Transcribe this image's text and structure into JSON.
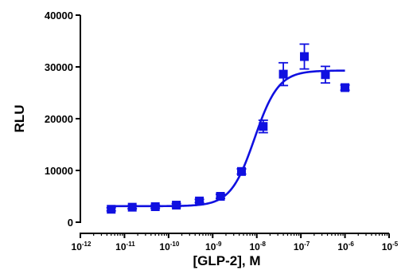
{
  "chart_data": {
    "type": "scatter",
    "title": "",
    "xlabel": "[GLP-2], M",
    "ylabel": "RLU",
    "x_scale": "log",
    "xlim": [
      1e-12,
      1e-05
    ],
    "ylim": [
      0,
      40000
    ],
    "grid": false,
    "legend": "none",
    "x_ticks": [
      1e-12,
      1e-11,
      1e-10,
      1e-09,
      1e-08,
      1e-07,
      1e-06,
      1e-05
    ],
    "x_tick_labels": [
      {
        "base": "10",
        "exp": "-12"
      },
      {
        "base": "10",
        "exp": "-11"
      },
      {
        "base": "10",
        "exp": "-10"
      },
      {
        "base": "10",
        "exp": "-9"
      },
      {
        "base": "10",
        "exp": "-8"
      },
      {
        "base": "10",
        "exp": "-7"
      },
      {
        "base": "10",
        "exp": "-6"
      },
      {
        "base": "10",
        "exp": "-5"
      }
    ],
    "y_ticks": [
      0,
      10000,
      20000,
      30000,
      40000
    ],
    "y_tick_labels": [
      "0",
      "10000",
      "20000",
      "30000",
      "40000"
    ],
    "color": "#1010e0",
    "series": [
      {
        "marker": "square",
        "points": [
          {
            "x": 5e-12,
            "y": 2500,
            "err": 300
          },
          {
            "x": 1.5e-11,
            "y": 2900,
            "err": 300
          },
          {
            "x": 5e-11,
            "y": 3000,
            "err": 300
          },
          {
            "x": 1.5e-10,
            "y": 3300,
            "err": 300
          },
          {
            "x": 5e-10,
            "y": 4100,
            "err": 300
          },
          {
            "x": 1.5e-09,
            "y": 5000,
            "err": 400
          },
          {
            "x": 4.5e-09,
            "y": 9800,
            "err": 500
          },
          {
            "x": 1.4e-08,
            "y": 18500,
            "err": 1200
          },
          {
            "x": 4e-08,
            "y": 28600,
            "err": 2200
          },
          {
            "x": 1.2e-07,
            "y": 32000,
            "err": 2400
          },
          {
            "x": 3.6e-07,
            "y": 28500,
            "err": 1600
          },
          {
            "x": 1e-06,
            "y": 26000,
            "err": 500
          }
        ]
      }
    ],
    "fit_curve": {
      "model": "four-parameter logistic",
      "bottom": 3100,
      "top": 29300,
      "log_ec50": -8.05,
      "hill": 1.6,
      "x_range": [
        5e-12,
        1e-06
      ]
    }
  }
}
